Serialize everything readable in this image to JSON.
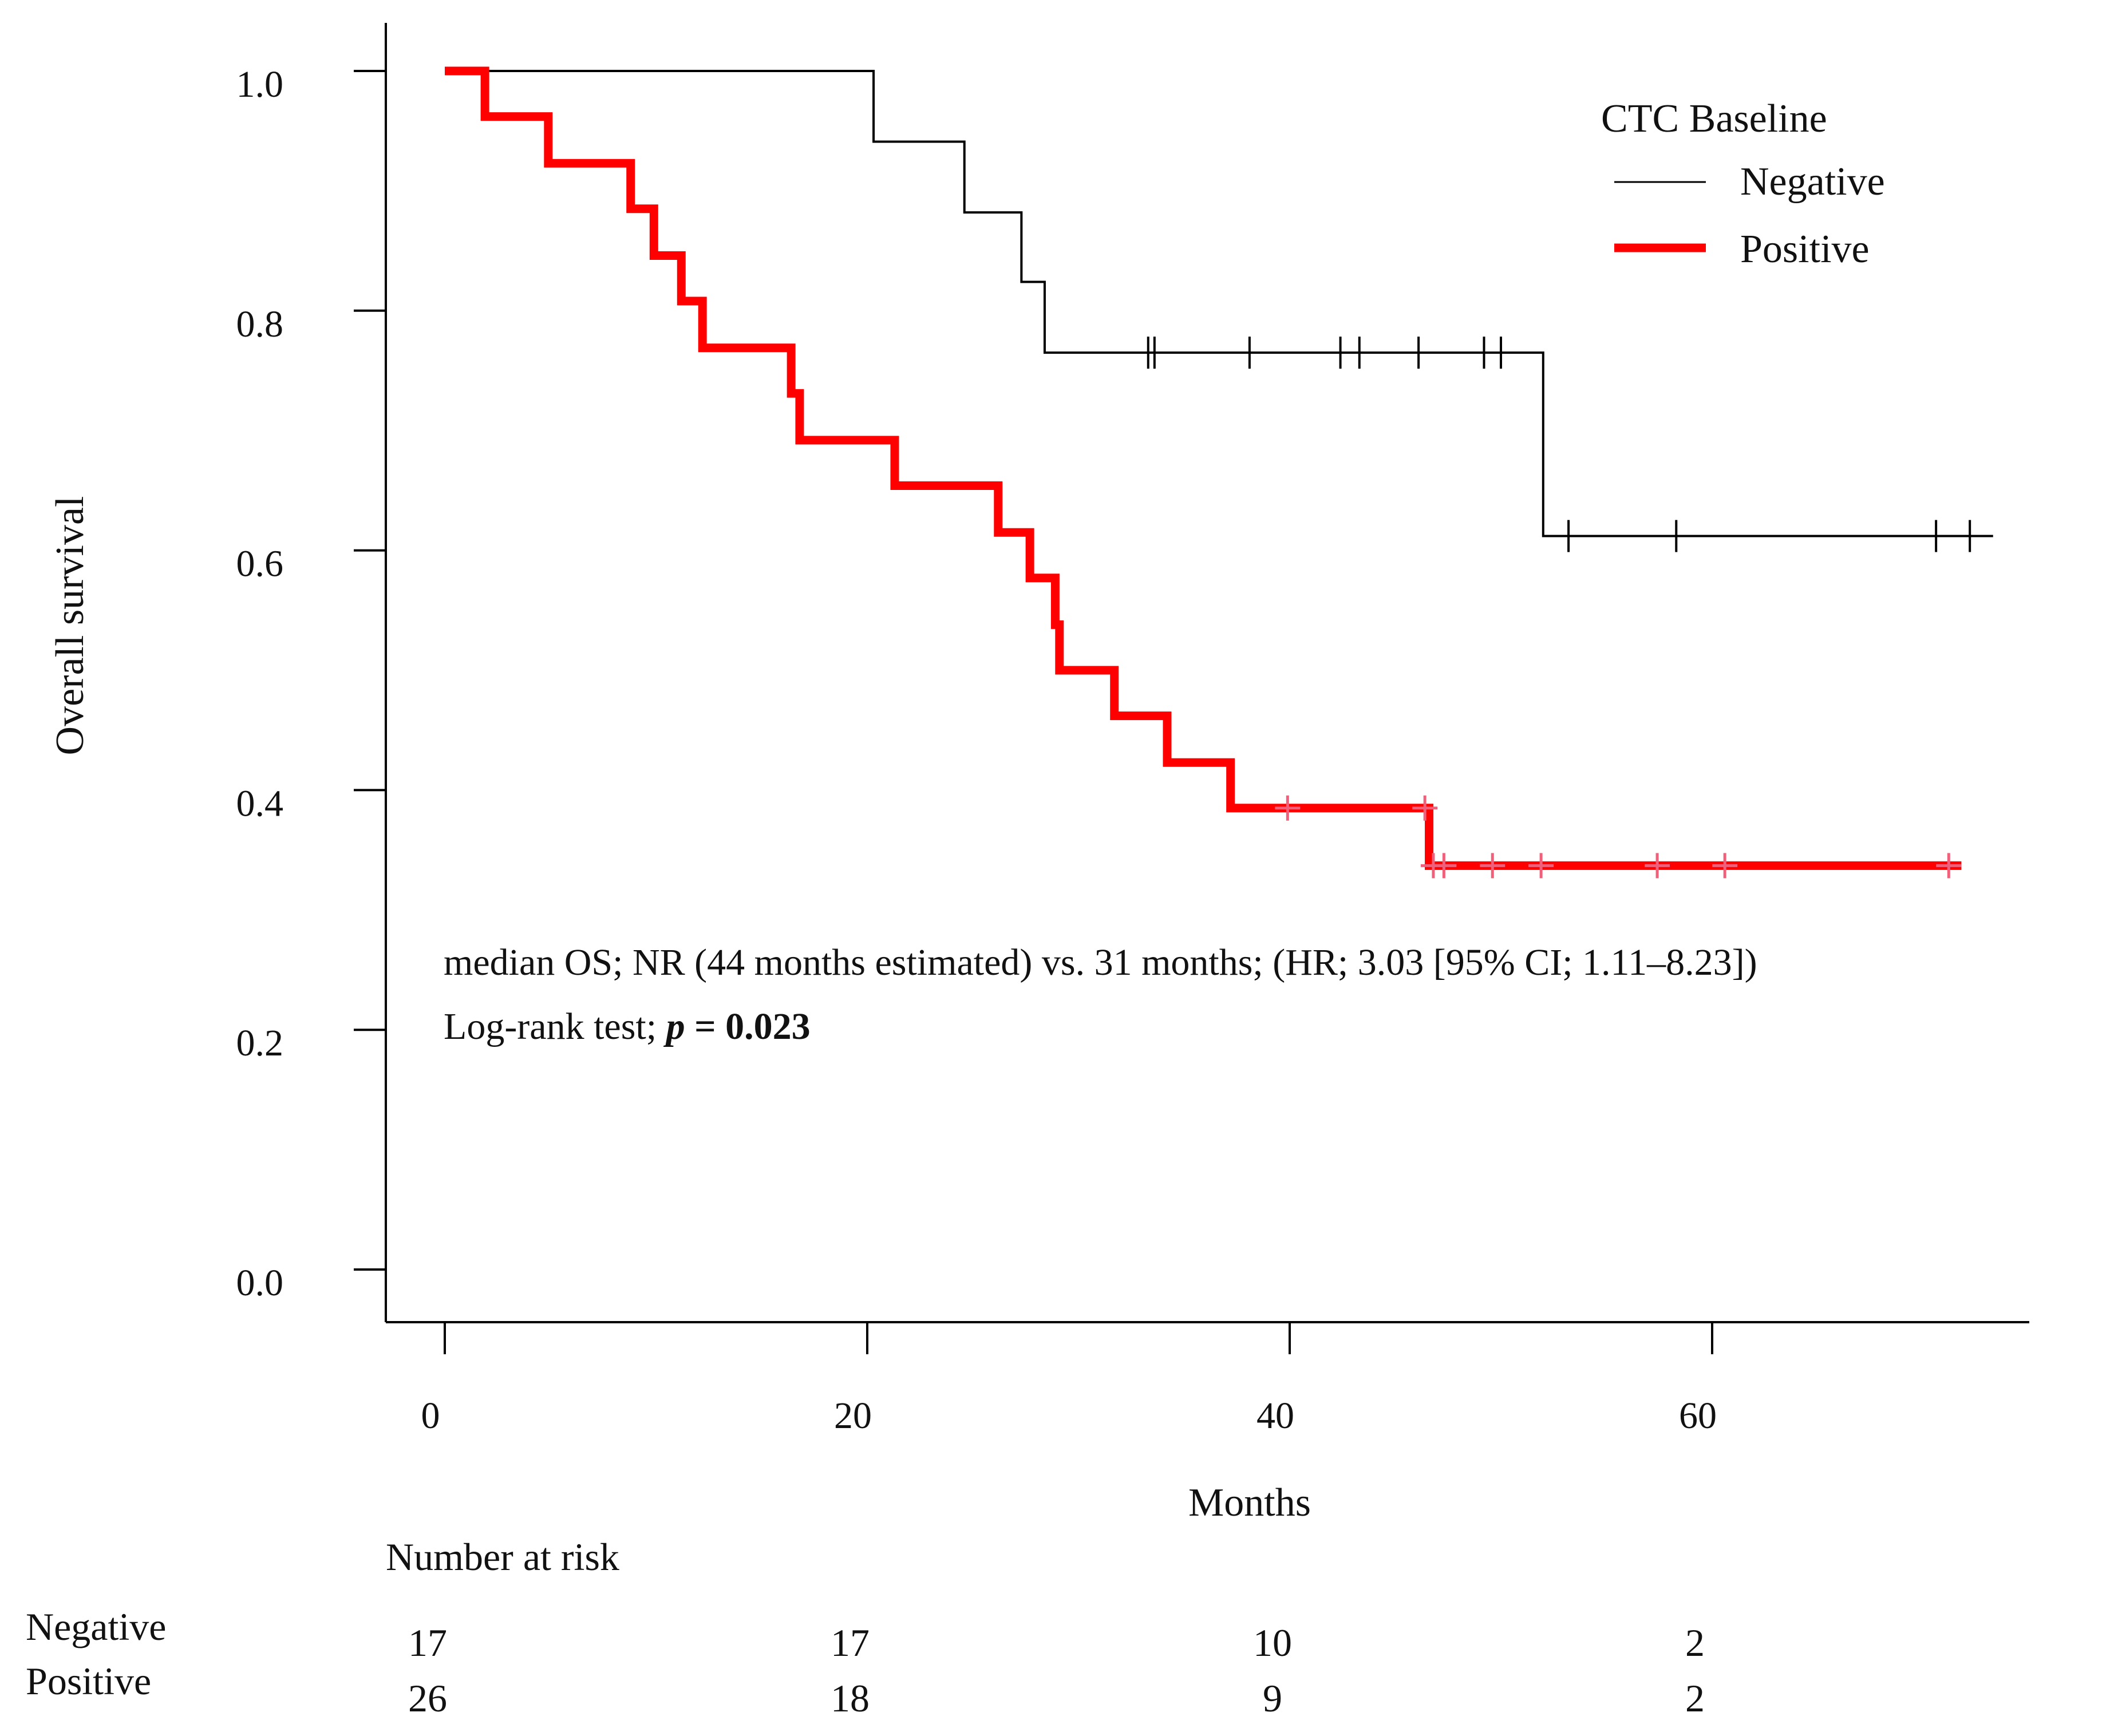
{
  "chart_data": {
    "type": "line",
    "subtype": "kaplan-meier",
    "xlabel": "Months",
    "ylabel": "Overall survival",
    "xlim": [
      -3.5,
      75
    ],
    "ylim": [
      -0.04,
      1.04
    ],
    "x_ticks": [
      0,
      20,
      40,
      60
    ],
    "y_ticks": [
      0.0,
      0.2,
      0.4,
      0.6,
      0.8,
      1.0
    ],
    "y_tick_labels": [
      "0.0",
      "0.2",
      "0.4",
      "0.6",
      "0.8",
      "1.0"
    ],
    "legend": {
      "title": "CTC Baseline",
      "position": "top-right",
      "entries": [
        "Negative",
        "Positive"
      ]
    },
    "series": [
      {
        "name": "Negative",
        "color": "#000000",
        "steps": [
          [
            0,
            1.0
          ],
          [
            20.3,
            0.941
          ],
          [
            24.6,
            0.882
          ],
          [
            27.3,
            0.824
          ],
          [
            28.4,
            0.765
          ],
          [
            52.0,
            0.612
          ]
        ],
        "end": 73.3,
        "censors": [
          [
            33.3,
            0.765
          ],
          [
            33.6,
            0.765
          ],
          [
            38.1,
            0.765
          ],
          [
            42.4,
            0.765
          ],
          [
            43.3,
            0.765
          ],
          [
            46.1,
            0.765
          ],
          [
            49.2,
            0.765
          ],
          [
            50.0,
            0.765
          ],
          [
            53.2,
            0.612
          ],
          [
            58.3,
            0.612
          ],
          [
            70.6,
            0.612
          ],
          [
            72.2,
            0.612
          ]
        ]
      },
      {
        "name": "Positive",
        "color": "#ff0000",
        "steps": [
          [
            0,
            1.0
          ],
          [
            1.9,
            0.962
          ],
          [
            4.9,
            0.923
          ],
          [
            8.8,
            0.885
          ],
          [
            9.9,
            0.846
          ],
          [
            11.2,
            0.808
          ],
          [
            12.2,
            0.769
          ],
          [
            16.4,
            0.731
          ],
          [
            16.8,
            0.692
          ],
          [
            21.3,
            0.654
          ],
          [
            26.2,
            0.615
          ],
          [
            27.7,
            0.577
          ],
          [
            28.9,
            0.538
          ],
          [
            29.1,
            0.5
          ],
          [
            31.7,
            0.462
          ],
          [
            34.2,
            0.423
          ],
          [
            37.2,
            0.385
          ],
          [
            46.6,
            0.337
          ]
        ],
        "end": 71.8,
        "censors": [
          [
            39.9,
            0.385
          ],
          [
            46.4,
            0.385
          ],
          [
            46.8,
            0.337
          ],
          [
            47.3,
            0.337
          ],
          [
            49.6,
            0.337
          ],
          [
            51.9,
            0.337
          ],
          [
            57.4,
            0.337
          ],
          [
            60.6,
            0.337
          ],
          [
            71.2,
            0.337
          ]
        ]
      }
    ],
    "annotations": {
      "median_line": "median OS; NR (44 months estimated) vs. 31 months; (HR; 3.03 [95% CI; 1.11–8.23])",
      "logrank_prefix": "Log-rank test; ",
      "p_symbol": "p",
      "p_value": " = 0.023"
    },
    "risk_table": {
      "title": "Number at risk",
      "rows": [
        {
          "label": "Negative",
          "values": [
            "17",
            "17",
            "10",
            "2"
          ]
        },
        {
          "label": "Positive",
          "values": [
            "26",
            "18",
            "9",
            "2"
          ]
        }
      ]
    }
  }
}
